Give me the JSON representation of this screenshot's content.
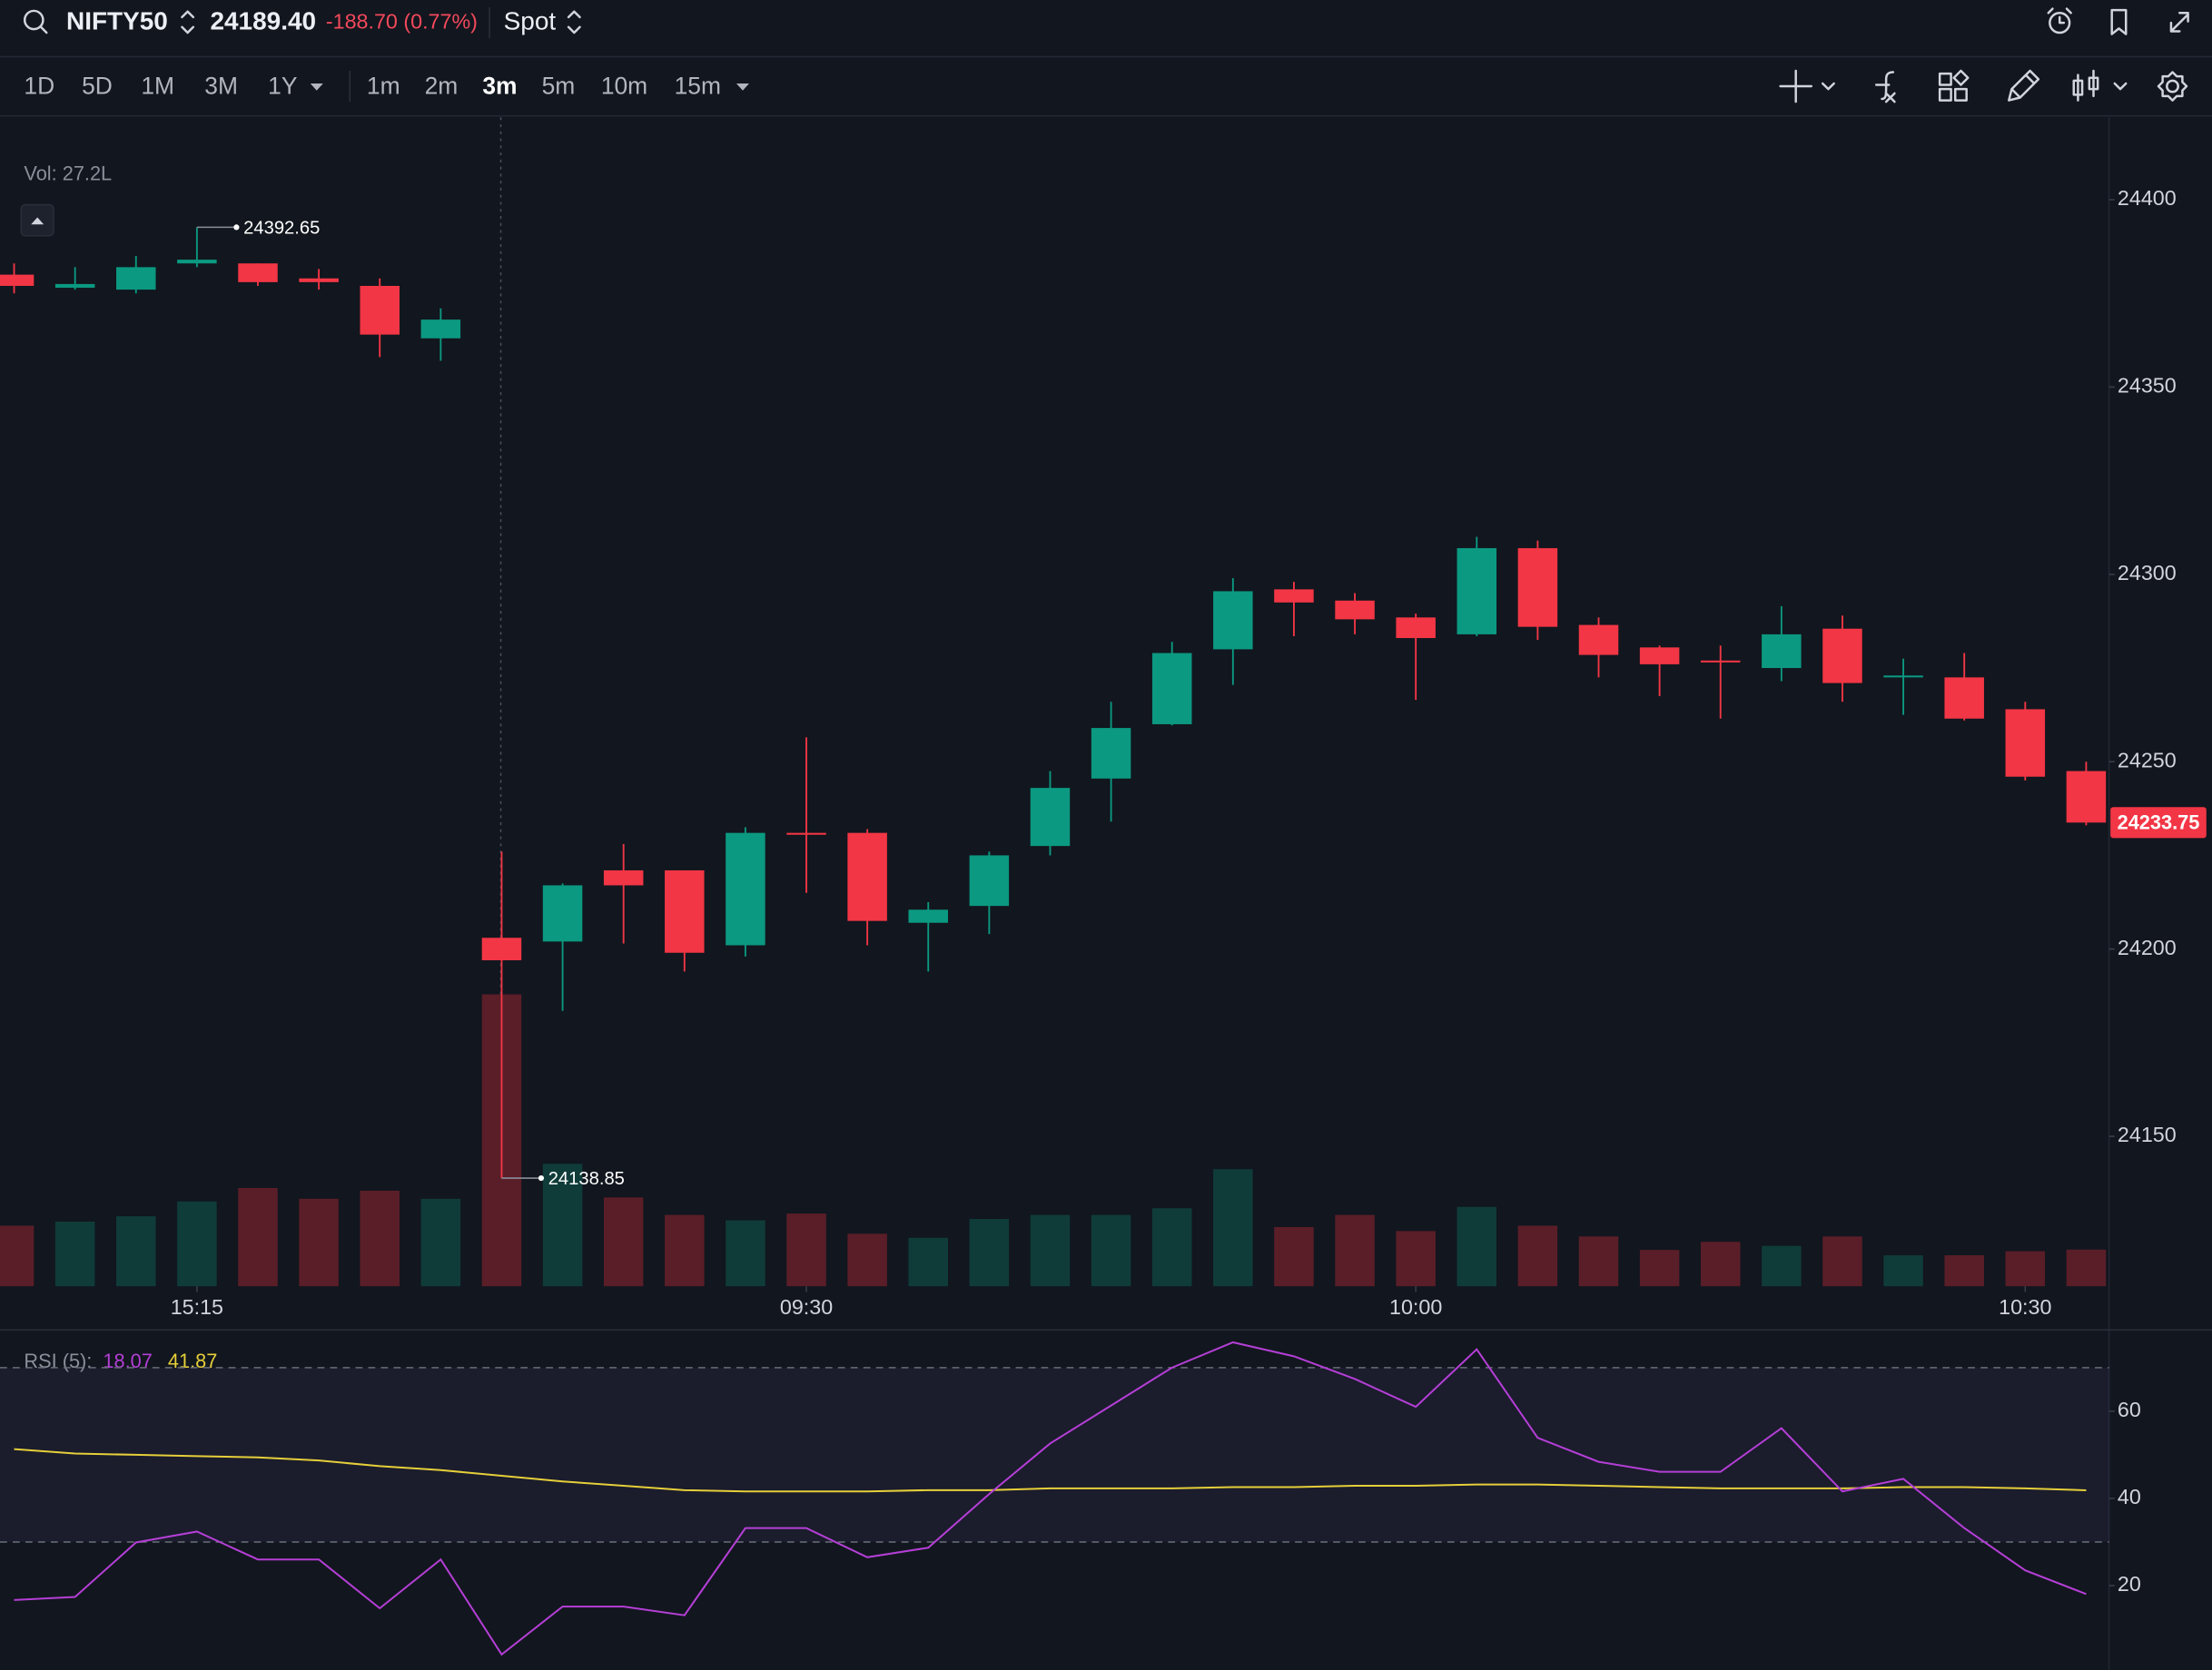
{
  "header": {
    "symbol": "NIFTY50",
    "price": "24189.40",
    "change": "-188.70 (0.77%)",
    "mode": "Spot"
  },
  "toolbar": {
    "ranges": [
      "1D",
      "5D",
      "1M",
      "3M",
      "1Y"
    ],
    "intervals": [
      "1m",
      "2m",
      "3m",
      "5m",
      "10m",
      "15m"
    ],
    "active_interval": "3m"
  },
  "chart_data": [
    {
      "type": "candlestick",
      "categories": [
        null,
        null,
        null,
        "15:15",
        null,
        null,
        null,
        null,
        null,
        null,
        null,
        null,
        null,
        "09:30",
        null,
        null,
        null,
        null,
        null,
        null,
        null,
        null,
        null,
        "10:00",
        null,
        null,
        null,
        null,
        null,
        null,
        null,
        null,
        null,
        "10:30",
        null
      ],
      "open": [
        24380,
        24376.5,
        24376,
        24383,
        24383,
        24379,
        24377,
        24363,
        24203,
        24202,
        24221,
        24221,
        24201,
        24231,
        24231,
        24207,
        24211.5,
        24227.5,
        24245.5,
        24260,
        24280,
        24296,
        24293,
        24288.5,
        24284,
        24307,
        24286.5,
        24280.5,
        24277,
        24275,
        24285.5,
        24272.5,
        24272.5,
        24264,
        24247.5
      ],
      "high": [
        24383,
        24382,
        24385,
        24392.65,
        24383,
        24381.5,
        24379,
        24371,
        24226,
        24217.5,
        24228,
        24221,
        24232.5,
        24256.5,
        24232,
        24212.5,
        24226,
        24247.5,
        24266,
        24282,
        24299,
        24298,
        24295,
        24289.5,
        24310,
        24309,
        24288.5,
        24281,
        24281,
        24291.5,
        24289,
        24277.5,
        24279,
        24266,
        24250
      ],
      "low": [
        24375,
        24376,
        24375,
        24382,
        24377,
        24376,
        24358,
        24357,
        24138.85,
        24183.5,
        24201.5,
        24194,
        24198,
        24215,
        24201,
        24194,
        24204,
        24225,
        24234,
        24259.7,
        24270.5,
        24283.5,
        24284,
        24266.5,
        24283.5,
        24282.5,
        24272.5,
        24267.5,
        24261.5,
        24271.5,
        24266,
        24262.5,
        24261,
        24245,
        24233
      ],
      "close": [
        24377,
        24377.5,
        24382,
        24384,
        24378,
        24378,
        24364,
        24368,
        24197,
        24217,
        24217,
        24199,
        24231,
        24230.5,
        24207.5,
        24210.5,
        24225,
        24243,
        24259,
        24279,
        24295.5,
        24292.5,
        24288,
        24283,
        24307,
        24286,
        24278.5,
        24276,
        24276.5,
        24284,
        24271,
        24273,
        24261.5,
        24246,
        24233.75
      ],
      "volume": [
        45,
        48,
        52,
        63,
        73,
        65,
        71,
        65,
        217,
        91,
        66,
        53,
        49,
        54,
        39,
        36,
        50,
        53,
        53,
        58,
        87,
        44,
        53,
        41,
        59,
        45,
        37,
        27,
        33,
        30,
        37,
        23,
        23,
        26,
        27.2
      ],
      "volume_label": "Vol: 27.2L",
      "up_color": "#0b9981",
      "down_color": "#f23645",
      "volume_up_color": "#0f3c39",
      "volume_down_color": "#5a1e29",
      "ylim": [
        24110,
        24422
      ],
      "yticks": [
        24150,
        24200,
        24250,
        24300,
        24350,
        24400
      ]
    },
    {
      "type": "line",
      "title": "RSI (5):",
      "series": [
        {
          "color": "#b43fd6",
          "values": [
            16.7,
            17.4,
            29.9,
            32.4,
            26,
            26,
            14.8,
            26,
            4.2,
            15.2,
            15.2,
            13.2,
            33.2,
            33.2,
            26.5,
            28.7,
            41,
            52.6,
            61.3,
            70,
            75.8,
            72.6,
            67.4,
            61,
            74.2,
            53.9,
            48.4,
            46.1,
            46.1,
            56.1,
            41.6,
            44.5,
            33.2,
            23.5,
            18.07
          ]
        },
        {
          "color": "#e6cf3a",
          "values": [
            51.3,
            50.3,
            50,
            49.7,
            49.4,
            48.7,
            47.4,
            46.5,
            45.2,
            43.9,
            42.9,
            41.9,
            41.6,
            41.6,
            41.6,
            41.9,
            41.9,
            42.3,
            42.3,
            42.3,
            42.6,
            42.6,
            42.9,
            42.9,
            43.2,
            43.2,
            42.9,
            42.6,
            42.3,
            42.3,
            42.3,
            42.6,
            42.6,
            42.3,
            41.87
          ]
        }
      ],
      "levels": [
        30,
        70
      ],
      "ylim": [
        2,
        78
      ],
      "yticks": [
        20,
        40,
        60
      ]
    }
  ]
}
